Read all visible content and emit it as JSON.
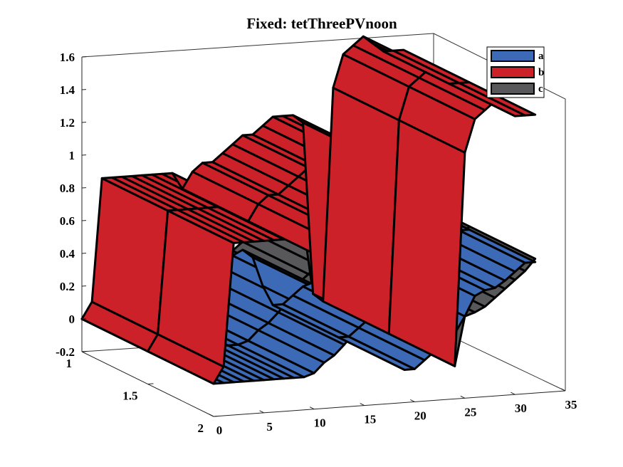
{
  "chart_data": {
    "type": "surface3d",
    "title": "Fixed: tetThreePVnoon",
    "xlabel": "",
    "ylabel": "",
    "zlabel": "",
    "x_ticks": [
      0,
      5,
      10,
      15,
      20,
      25,
      30,
      35
    ],
    "y_ticks": [
      1,
      1.5,
      2
    ],
    "z_ticks": [
      -0.2,
      0,
      0.2,
      0.4,
      0.6,
      0.8,
      1,
      1.2,
      1.4,
      1.6
    ],
    "x_tick_labels": [
      "0",
      "5",
      "10",
      "15",
      "20",
      "25",
      "30",
      "35"
    ],
    "y_tick_labels": [
      "1",
      "1.5",
      "2"
    ],
    "z_tick_labels": [
      "-0.2",
      "0",
      "0.2",
      "0.4",
      "0.6",
      "0.8",
      "1",
      "1.2",
      "1.4",
      "1.6"
    ],
    "xlim": [
      0,
      35
    ],
    "ylim": [
      1,
      2
    ],
    "zlim": [
      -0.2,
      1.6
    ],
    "legend_position": "top-right",
    "x": [
      0,
      1,
      2,
      3,
      4,
      5,
      6,
      7,
      8,
      9,
      10,
      11,
      12,
      13,
      14,
      15,
      16,
      17,
      18,
      19,
      20,
      21,
      22,
      23,
      24,
      25,
      26,
      27,
      28,
      29,
      30,
      31,
      32
    ],
    "series": [
      {
        "name": "a",
        "color": "#3c6ab7",
        "values": [
          0,
          0,
          0,
          0,
          0,
          0,
          0,
          0,
          0,
          0,
          0.02,
          0.08,
          0.12,
          0.18,
          0.25,
          0.32,
          0.35,
          0.3,
          0.12,
          0,
          0,
          0.05,
          0.1,
          0.12,
          0.2,
          0.3,
          0.42,
          0.45,
          0.46,
          0.5,
          0.55,
          0.6,
          0.6
        ]
      },
      {
        "name": "b",
        "color": "#cd212a",
        "values": [
          0,
          0.1,
          0.85,
          0.85,
          0.85,
          0.85,
          0.85,
          0.85,
          0.85,
          0.85,
          0.75,
          0.85,
          0.9,
          0.9,
          0.95,
          1,
          1.05,
          1.05,
          1.1,
          1.15,
          1.15,
          1.15,
          1.1,
          0.05,
          0,
          1.3,
          1.5,
          1.55,
          1.6,
          1.55,
          1.5,
          1.5,
          1.5
        ]
      },
      {
        "name": "c",
        "color": "#58585a",
        "values": [
          0,
          0.02,
          0.2,
          0.18,
          0.18,
          0.18,
          0.18,
          0.16,
          0.14,
          0.12,
          0.1,
          0.15,
          0.22,
          0.26,
          0.3,
          0.35,
          0.4,
          0.45,
          0.5,
          0.52,
          0.55,
          0.55,
          0.5,
          0.05,
          0,
          0.3,
          0.32,
          0.35,
          0.4,
          0.45,
          0.5,
          0.55,
          0.62
        ]
      }
    ]
  }
}
